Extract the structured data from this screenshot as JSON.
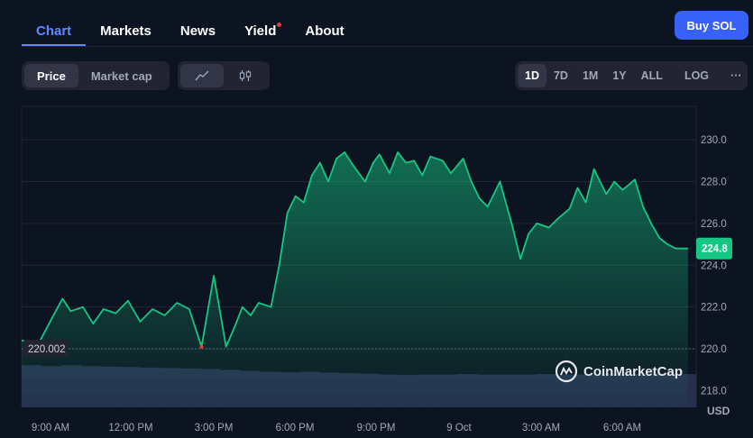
{
  "tabs": [
    {
      "label": "Chart",
      "active": true
    },
    {
      "label": "Markets",
      "active": false
    },
    {
      "label": "News",
      "active": false
    },
    {
      "label": "Yield",
      "active": false,
      "dot": true
    },
    {
      "label": "About",
      "active": false
    }
  ],
  "buy_button": "Buy SOL",
  "metric_toggle": {
    "price": "Price",
    "market_cap": "Market cap"
  },
  "chart_type_icons": [
    "line-chart-icon",
    "candlestick-icon"
  ],
  "ranges": [
    "1D",
    "7D",
    "1M",
    "1Y",
    "ALL"
  ],
  "selected_range": "1D",
  "log_label": "LOG",
  "more_label": "···",
  "watermark": "CoinMarketCap",
  "currency": "USD",
  "colors": {
    "line": "#16c784",
    "accent": "#3861fb",
    "volume": "#2c3556",
    "background": "#0d1421"
  },
  "chart_data": {
    "type": "line",
    "ylim": [
      217.2,
      231.6
    ],
    "y_ticks": [
      "218.0",
      "220.0",
      "222.0",
      "224.0",
      "226.0",
      "228.0",
      "230.0"
    ],
    "x_ticks": [
      "9:00 AM",
      "12:00 PM",
      "3:00 PM",
      "6:00 PM",
      "9:00 PM",
      "9 Oct",
      "3:00 AM",
      "6:00 AM"
    ],
    "open_price": "220.002",
    "current_price": "224.8",
    "series": [
      {
        "x_hours": [
          0.0,
          0.8,
          1.5,
          2.0,
          2.4,
          3.0,
          3.5,
          4.0,
          4.6,
          5.2,
          5.8,
          6.4,
          7.0,
          7.6,
          8.2,
          8.8,
          9.4,
          10.0,
          10.4,
          10.8,
          11.2,
          11.6,
          12.2,
          12.6,
          13.0,
          13.4,
          13.8,
          14.2,
          14.6,
          15.0,
          15.4,
          15.8,
          16.2,
          16.8,
          17.2,
          17.5,
          18.0,
          18.4,
          18.8,
          19.2,
          19.6,
          20.0,
          20.6,
          21.0,
          21.6,
          22.0,
          22.4,
          22.8,
          23.4,
          24.0,
          24.4,
          24.8,
          25.2,
          25.8,
          26.2,
          26.8,
          27.2,
          27.6,
          28.0,
          28.6,
          29.0,
          29.4,
          30.0,
          30.4,
          30.8,
          31.2,
          31.6,
          32.0,
          32.4,
          32.6
        ],
        "values": [
          220.4,
          220.2,
          221.5,
          222.4,
          221.8,
          222.0,
          221.2,
          221.9,
          221.7,
          222.3,
          221.3,
          221.9,
          221.6,
          222.2,
          221.9,
          220.1,
          223.5,
          220.1,
          221.0,
          222.0,
          221.6,
          222.2,
          222.0,
          224.0,
          226.5,
          227.3,
          227.0,
          228.3,
          228.9,
          228.0,
          229.1,
          229.4,
          228.8,
          228.0,
          228.9,
          229.3,
          228.4,
          229.4,
          228.9,
          229.0,
          228.3,
          229.2,
          229.0,
          228.4,
          229.1,
          228.0,
          227.2,
          226.8,
          228.0,
          225.9,
          224.3,
          225.5,
          226.0,
          225.8,
          226.2,
          226.7,
          227.7,
          227.0,
          228.6,
          227.4,
          228.0,
          227.6,
          228.1,
          226.8,
          226.0,
          225.3,
          225.0,
          224.8,
          224.8,
          224.8
        ]
      }
    ],
    "volume": [
      0.9,
      0.88,
      0.9,
      0.88,
      0.87,
      0.86,
      0.85,
      0.84,
      0.83,
      0.82,
      0.8,
      0.78,
      0.76,
      0.75,
      0.76,
      0.74,
      0.73,
      0.72,
      0.7,
      0.69,
      0.7,
      0.7,
      0.71,
      0.7,
      0.7,
      0.7,
      0.71,
      0.7,
      0.7,
      0.72,
      0.71,
      0.72,
      0.72,
      0.71
    ]
  }
}
